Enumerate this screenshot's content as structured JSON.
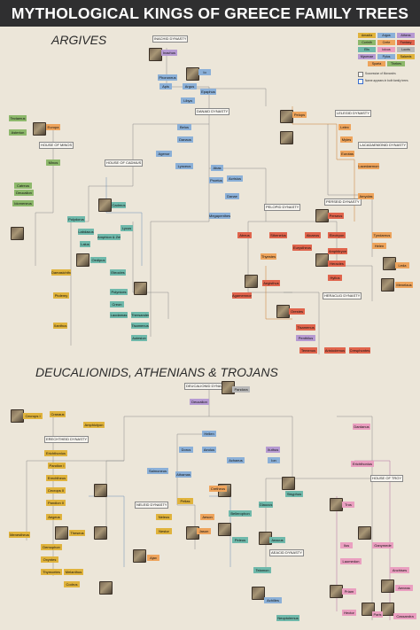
{
  "title": "MYTHOLOGICAL KINGS OF GREECE FAMILY TREES",
  "sections": [
    "ARGIVES",
    "DEUCALIONIDS, ATHENIANS & TROJANS"
  ],
  "colors": {
    "background": "#ece6d9",
    "title_bar": "#2f2f30",
    "gold": "#e0b33c",
    "blue": "#8bb0d8",
    "purple": "#b69ad2",
    "green": "#8db86b",
    "orange": "#eea45c",
    "red": "#e0644c",
    "pink": "#ea9fc0",
    "grey": "#b8b8b8",
    "teal": "#6fb9ab"
  },
  "legend": {
    "regions": [
      {
        "label": "Amadia",
        "color": "gold"
      },
      {
        "label": "Argos",
        "color": "blue"
      },
      {
        "label": "Athens",
        "color": "purple"
      },
      {
        "label": "Corinth",
        "color": "green"
      },
      {
        "label": "Crete",
        "color": "orange"
      },
      {
        "label": "Fantasy",
        "color": "red"
      },
      {
        "label": "Elis",
        "color": "teal"
      },
      {
        "label": "Iolcus",
        "color": "pink"
      },
      {
        "label": "Locris",
        "color": "grey"
      },
      {
        "label": "Mycenae",
        "color": "purple"
      },
      {
        "label": "Pylos",
        "color": "blue"
      },
      {
        "label": "Salamis",
        "color": "gold"
      },
      {
        "label": "Sparta",
        "color": "orange"
      },
      {
        "label": "Thebes",
        "color": "green"
      }
    ],
    "succession_note": "Succession of Monarchs",
    "both_trees_note": "Name appears in both family trees"
  },
  "dynasties": [
    "INACHID DYNASTY",
    "DANAID DYNASTY",
    "HOUSE OF MINOS",
    "HOUSE OF CADMUS",
    "PELOPID DYNASTY",
    "PERSEID DYNASTY",
    "HERACLID DYNASTY",
    "LELEGID DYNASTY",
    "LACADAEMONID DYNASTY",
    "DEUCALIONID DYNASTY",
    "ERECHTHEID DYNASTY",
    "NELEID DYNASTY",
    "AEACID DYNASTY",
    "HOUSE OF TROY"
  ],
  "argive_nodes": [
    "Inachus",
    "Io",
    "Phoroneus",
    "Apis",
    "Argus",
    "Epaphus",
    "Libya",
    "Belus",
    "Agenor",
    "Danaus",
    "Europa",
    "Minos",
    "Tectamus",
    "Asterion",
    "Deucalion",
    "Idomeneus",
    "Catreus",
    "Cadmus",
    "Polydorus",
    "Labdacus",
    "Laius",
    "Oedipus",
    "Eteocles",
    "Polynices",
    "Creon",
    "Amphion & Zethus",
    "Lycus",
    "Laodamas",
    "Thersander",
    "Tisamenus",
    "Autesion",
    "Damasichthon",
    "Ptolemy",
    "Xanthus",
    "Lynceus",
    "Abas",
    "Acrisius",
    "Proetus",
    "Danae",
    "Perseus",
    "Megapenthes",
    "Electryon",
    "Alcaeus",
    "Sthenelus",
    "Eurystheus",
    "Amphitryon",
    "Heracles",
    "Hyllus",
    "Atreus",
    "Thyestes",
    "Pelops",
    "Agamemnon",
    "Menelaus",
    "Aegisthus",
    "Orestes",
    "Tisamenus",
    "Penthilus",
    "Lelex",
    "Myles",
    "Eurotas",
    "Lacedaemon",
    "Amyclas",
    "Tyndareus",
    "Helen",
    "Leda",
    "Aristodemus",
    "Temenus",
    "Cresphontes"
  ],
  "deucalionid_nodes": [
    "Deucalion",
    "Pandora",
    "Hellen",
    "Aeolus",
    "Dorus",
    "Xuthus",
    "Achaeus",
    "Ion",
    "Cecrops I",
    "Cranaus",
    "Amphictyon",
    "Erichthonius",
    "Pandion I",
    "Erechtheus",
    "Cecrops II",
    "Pandion II",
    "Aegeus",
    "Theseus",
    "Menestheus",
    "Demophon",
    "Oxyntes",
    "Thymoetes",
    "Melanthus",
    "Codrus",
    "Salmoneus",
    "Sisyphus",
    "Glaucus",
    "Bellerophon",
    "Athamas",
    "Cretheus",
    "Aeson",
    "Jason",
    "Pelias",
    "Neleus",
    "Nestor",
    "Aeacus",
    "Peleus",
    "Telamon",
    "Achilles",
    "Ajax",
    "Neoptolemus",
    "Dardanus",
    "Erichthonius",
    "Tros",
    "Ilus",
    "Laomedon",
    "Priam",
    "Hector",
    "Paris",
    "Cassandra",
    "Aeneas",
    "Anchises",
    "Ganymede"
  ]
}
